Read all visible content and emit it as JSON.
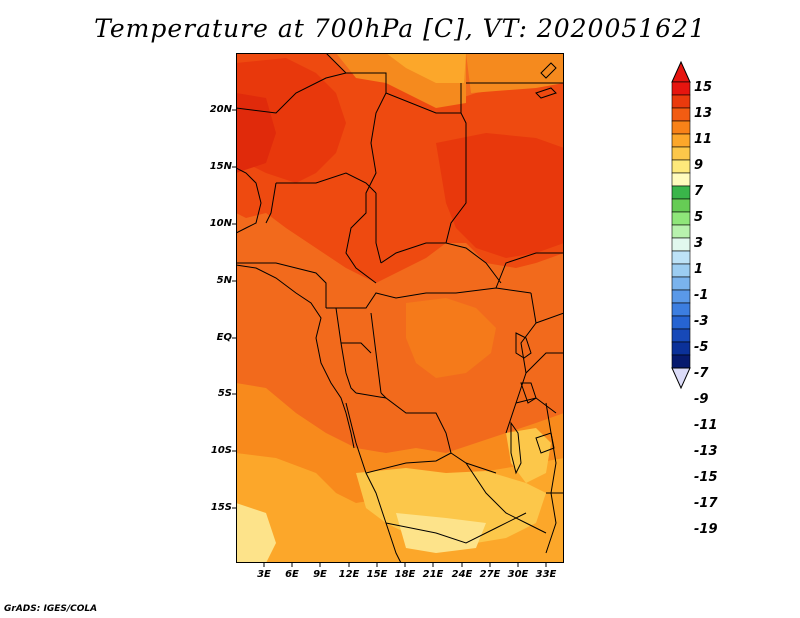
{
  "title": "Temperature at 700hPa [C], VT: 2020051621",
  "map": {
    "region": "Central Africa",
    "lat_labels": [
      "20N",
      "15N",
      "10N",
      "5N",
      "EQ",
      "5S",
      "10S",
      "15S"
    ],
    "lon_labels": [
      "3E",
      "6E",
      "9E",
      "12E",
      "15E",
      "18E",
      "21E",
      "24E",
      "27E",
      "30E",
      "33E"
    ]
  },
  "colorbar": {
    "labels": [
      "15",
      "13",
      "11",
      "9",
      "7",
      "5",
      "3",
      "1",
      "-1",
      "-3",
      "-5",
      "-7",
      "-9",
      "-11",
      "-13",
      "-15",
      "-17",
      "-19"
    ],
    "colors": [
      "#e6150f",
      "#ea3a0d",
      "#f25c12",
      "#f88218",
      "#fca72a",
      "#fcc74a",
      "#fde97b",
      "#fffbbd",
      "#3ab54a",
      "#66cc55",
      "#8fe67a",
      "#b8f2ae",
      "#e1f8ee",
      "#bde2f7",
      "#9ccdf2",
      "#7ab3ed",
      "#5a99e8",
      "#3c7ee0",
      "#2664d2",
      "#1749b8",
      "#0b3199",
      "#071a6e"
    ],
    "top_color": "#e6150f",
    "bottom_color": "#dcdcf8"
  },
  "footer": "GrADS: IGES/COLA"
}
